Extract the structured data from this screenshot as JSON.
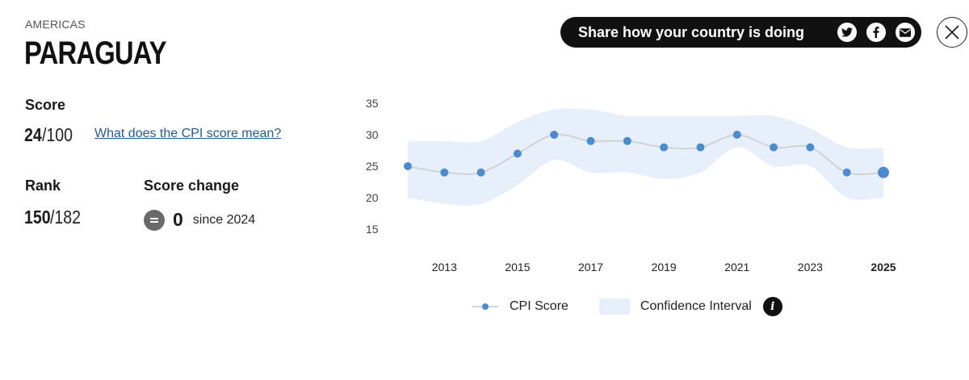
{
  "header": {
    "region": "AMERICAS",
    "country": "PARAGUAY"
  },
  "score": {
    "label": "Score",
    "value": "24",
    "out_of": "/100",
    "link_text": "What does the CPI score mean?"
  },
  "rank": {
    "label": "Rank",
    "value": "150",
    "out_of": "/182"
  },
  "score_change": {
    "label": "Score change",
    "value": "0",
    "since": "since 2024",
    "icon": "equals-icon"
  },
  "share": {
    "text": "Share how your country is doing",
    "icons": [
      "twitter-icon",
      "facebook-icon",
      "email-icon"
    ]
  },
  "close_icon": "close-icon",
  "chart_data": {
    "type": "line",
    "x": [
      2012,
      2013,
      2014,
      2015,
      2016,
      2017,
      2018,
      2019,
      2020,
      2021,
      2022,
      2023,
      2024,
      2025
    ],
    "series": [
      {
        "name": "CPI Score",
        "values": [
          25,
          24,
          24,
          27,
          30,
          29,
          29,
          28,
          28,
          30,
          28,
          28,
          24,
          24
        ]
      }
    ],
    "confidence_interval": {
      "name": "Confidence Interval",
      "upper": [
        29,
        29,
        29,
        32,
        34,
        34,
        33,
        33,
        33,
        33,
        33,
        31,
        28,
        28
      ],
      "lower": [
        20,
        19,
        19,
        22,
        26,
        24,
        24,
        23,
        24,
        28,
        25,
        25,
        20,
        20
      ]
    },
    "x_tick_labels": [
      "2013",
      "2015",
      "2017",
      "2019",
      "2021",
      "2023",
      "2025"
    ],
    "highlight_x": 2025,
    "y_ticks": [
      15,
      20,
      25,
      30,
      35
    ],
    "ylim": [
      15,
      35
    ],
    "title": "",
    "xlabel": "",
    "ylabel": "",
    "grid": false,
    "legend_position": "bottom",
    "colors": {
      "line": "#d2d2d2",
      "point": "#4a8ccf",
      "band": "#e7f0fa"
    }
  },
  "legend": {
    "score_label": "CPI Score",
    "ci_label": "Confidence Interval",
    "info_glyph": "i"
  }
}
